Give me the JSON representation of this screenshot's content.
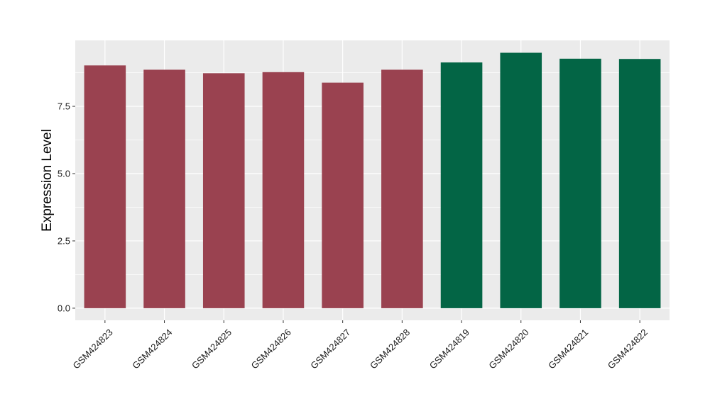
{
  "chart_data": {
    "type": "bar",
    "title": "",
    "xlabel": "",
    "ylabel": "Expression Level",
    "categories": [
      "GSM424823",
      "GSM424824",
      "GSM424825",
      "GSM424826",
      "GSM424827",
      "GSM424828",
      "GSM424819",
      "GSM424820",
      "GSM424821",
      "GSM424822"
    ],
    "values": [
      9.02,
      8.86,
      8.73,
      8.77,
      8.38,
      8.86,
      9.13,
      9.49,
      9.27,
      9.26
    ],
    "groups": [
      "a",
      "a",
      "a",
      "a",
      "a",
      "a",
      "b",
      "b",
      "b",
      "b"
    ],
    "group_colors": {
      "a": "#9a4250",
      "b": "#036545"
    },
    "ylim": [
      -0.45,
      9.95
    ],
    "yticks": [
      0.0,
      2.5,
      5.0,
      7.5
    ],
    "ytick_labels": [
      "0.0",
      "2.5",
      "5.0",
      "7.5"
    ],
    "grid": true,
    "legend": "none",
    "panel_background": "#ebebeb",
    "grid_color": "#ffffff"
  }
}
